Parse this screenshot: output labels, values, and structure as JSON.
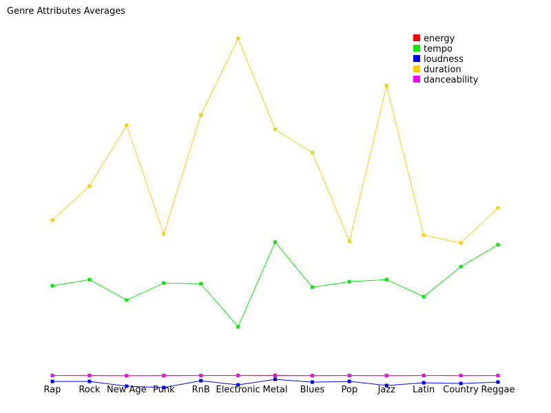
{
  "chart_data": {
    "type": "line",
    "title": "Genre Attributes Averages",
    "xlabel": "",
    "ylabel": "",
    "categories": [
      "Rap",
      "Rock",
      "New Age",
      "Punk",
      "RnB",
      "Electronic",
      "Metal",
      "Blues",
      "Pop",
      "Jazz",
      "Latin",
      "Country",
      "Reggae"
    ],
    "ylim": [
      -20,
      500
    ],
    "grid": false,
    "legend_position": "top-right",
    "series": [
      {
        "name": "energy",
        "color": "#ff0000",
        "values": [
          0.7,
          0.8,
          0.3,
          0.7,
          0.7,
          0.8,
          0.9,
          0.6,
          0.7,
          0.5,
          0.7,
          0.6,
          0.7
        ]
      },
      {
        "name": "tempo",
        "color": "#00ee00",
        "values": [
          132,
          141,
          111,
          136,
          135,
          72,
          196,
          130,
          138,
          141,
          116,
          160,
          192
        ]
      },
      {
        "name": "loudness",
        "color": "#0000ff",
        "values": [
          -8,
          -8,
          -15,
          -17,
          -7,
          -13,
          -5,
          -9,
          -8,
          -14,
          -10,
          -11,
          -9
        ]
      },
      {
        "name": "duration",
        "color": "#ffcc00",
        "values": [
          228,
          278,
          367,
          208,
          382,
          494,
          361,
          327,
          197,
          425,
          206,
          195,
          246
        ]
      },
      {
        "name": "danceability",
        "color": "#ff00ff",
        "values": [
          0.7,
          0.5,
          0.4,
          0.4,
          0.6,
          0.6,
          0.4,
          0.5,
          0.6,
          0.5,
          0.6,
          0.5,
          0.6
        ]
      }
    ]
  }
}
